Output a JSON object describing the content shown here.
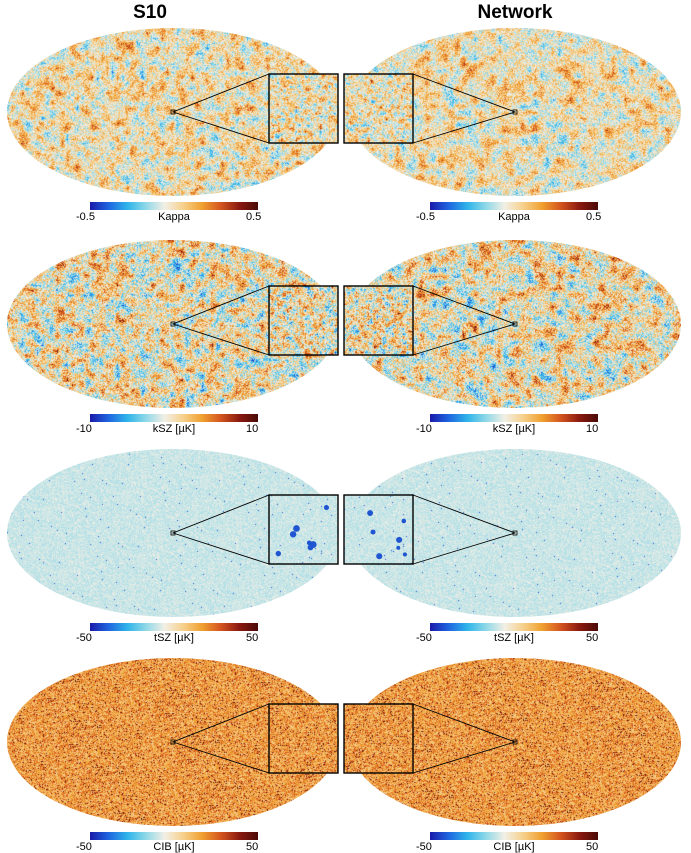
{
  "columns": [
    "S10",
    "Network"
  ],
  "rows": [
    {
      "field": "Kappa",
      "colorbar": {
        "min": "-0.5",
        "label": "Kappa",
        "max": "0.5"
      },
      "style": "gaussian",
      "inset": true
    },
    {
      "field": "kSZ",
      "colorbar": {
        "min": "-10",
        "label": "kSZ  [µK]",
        "max": "10"
      },
      "style": "gaussian-strong",
      "inset": true
    },
    {
      "field": "tSZ",
      "colorbar": {
        "min": "-50",
        "label": "tSZ  [µK]",
        "max": "50"
      },
      "style": "sparse",
      "inset": true
    },
    {
      "field": "CIB",
      "colorbar": {
        "min": "-50",
        "label": "CIB  [µK]",
        "max": "50"
      },
      "style": "cib",
      "inset": true
    }
  ],
  "colormap": [
    "#1a1aa8",
    "#1f66e0",
    "#2fb4ea",
    "#8fd8e8",
    "#f2efe6",
    "#f6d08a",
    "#f0a030",
    "#d4551f",
    "#8b1a10",
    "#4a0a08"
  ]
}
